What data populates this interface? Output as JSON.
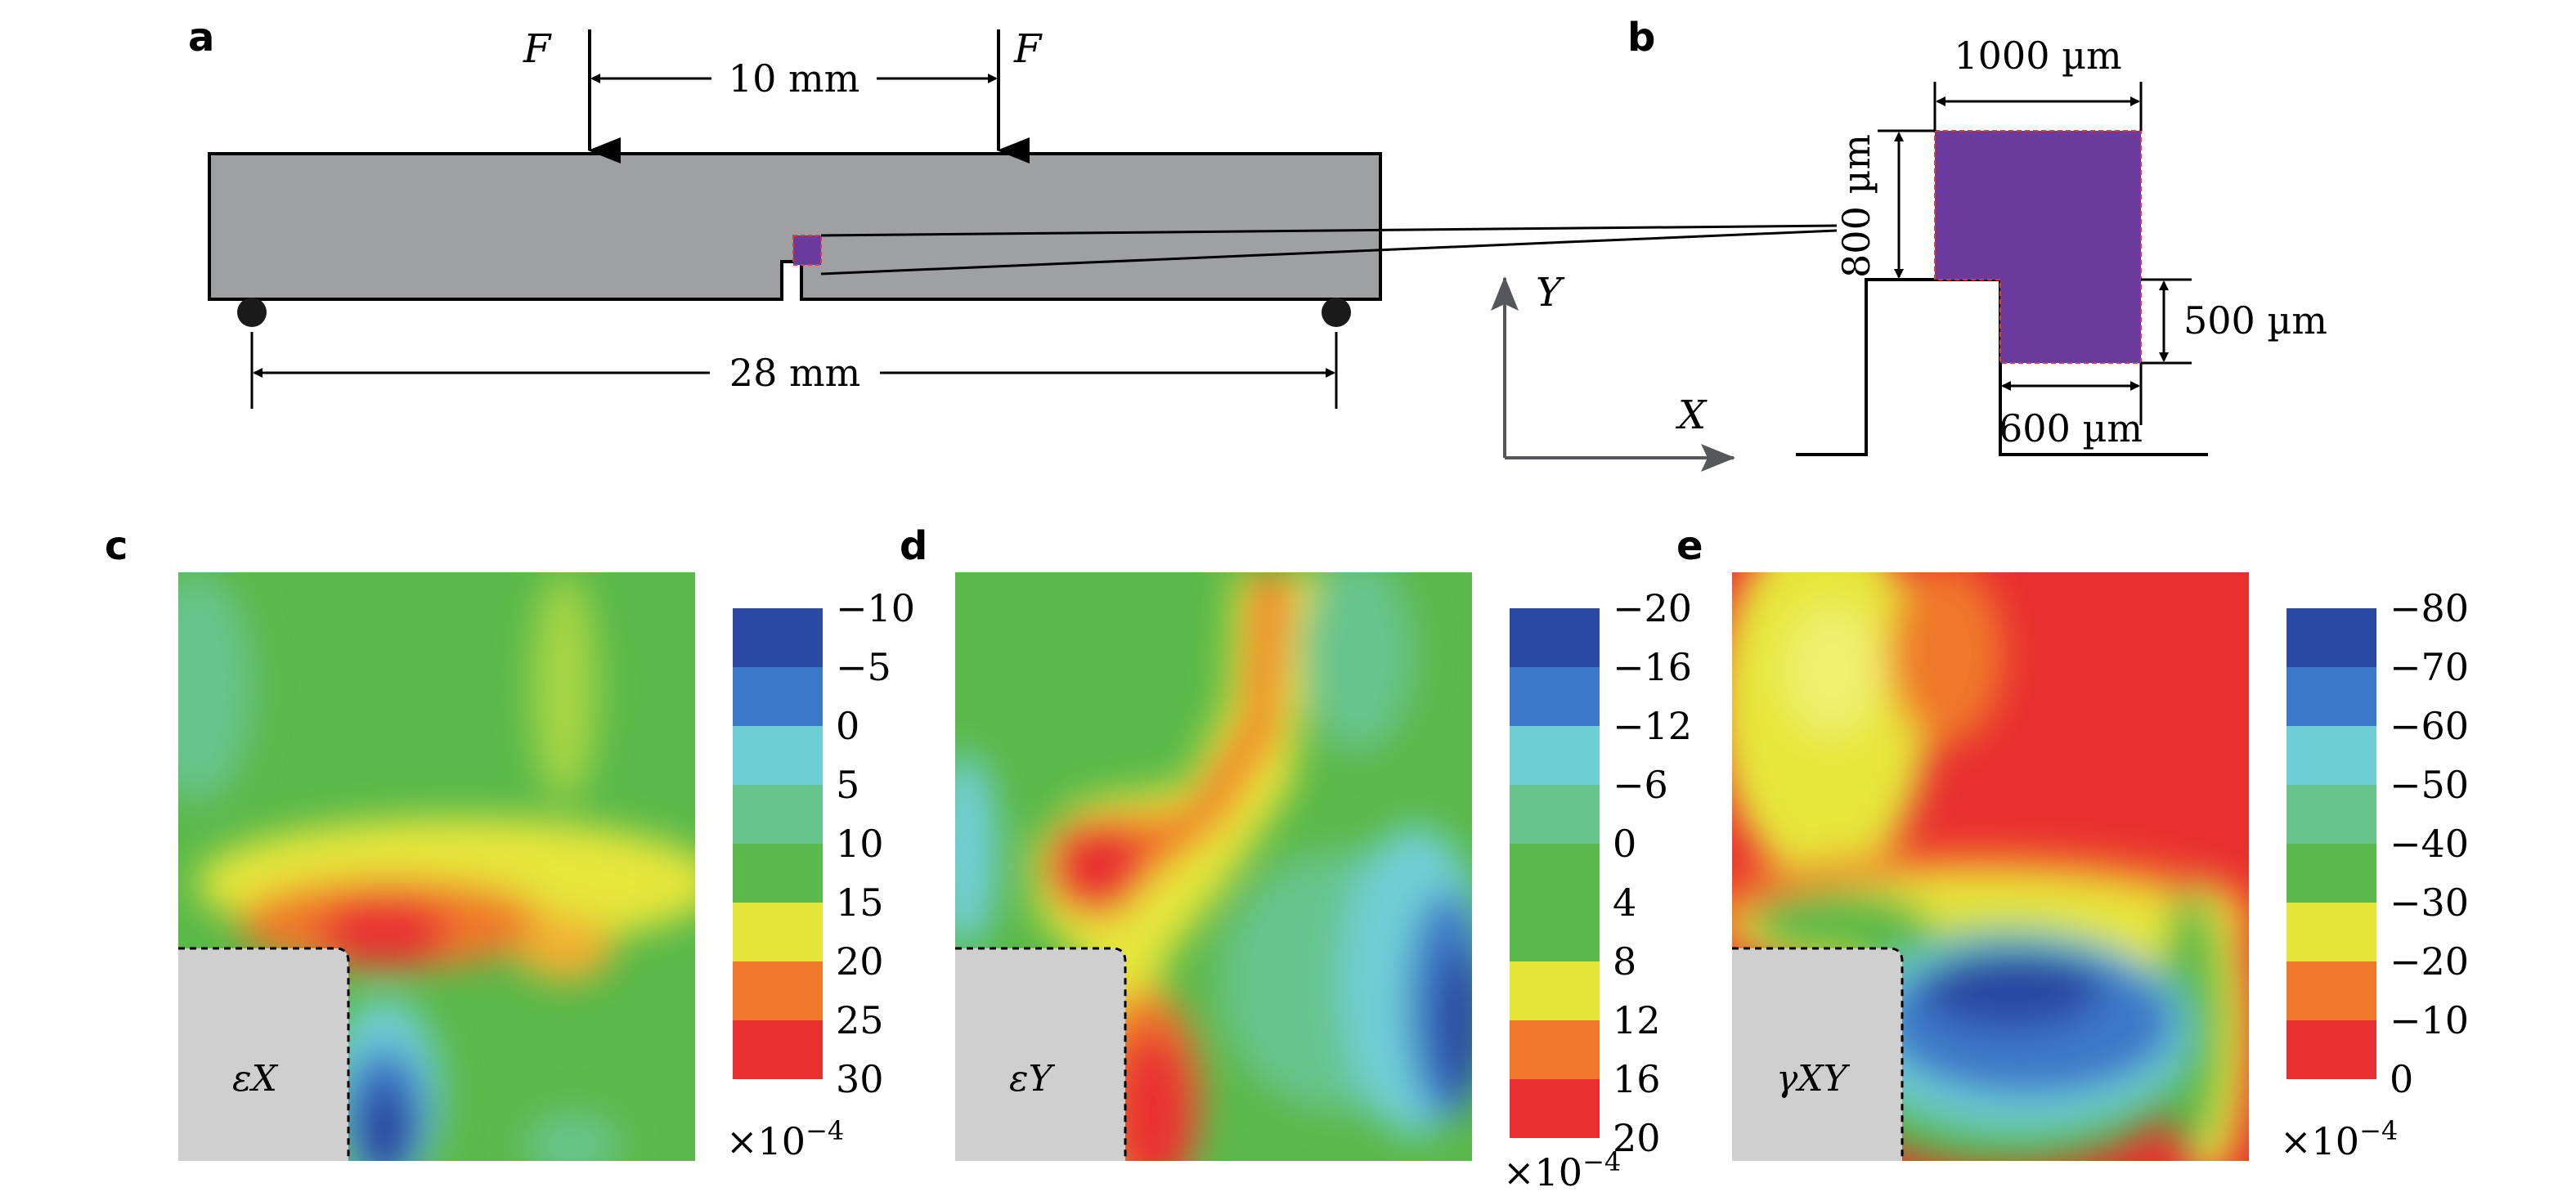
{
  "panel_labels": {
    "a": "a",
    "b": "b",
    "c": "c",
    "d": "d",
    "e": "e"
  },
  "panel_a": {
    "force_left": "F",
    "force_right": "F",
    "load_span": "10 mm",
    "support_span": "28 mm"
  },
  "panel_b": {
    "width_label": "1000 µm",
    "height_label": "800 µm",
    "notch_height_label": "500 µm",
    "notch_width_label": "600 µm",
    "axis_x": "X",
    "axis_y": "Y"
  },
  "panel_c": {
    "map_label": "εX",
    "ticks": [
      "−10",
      "−5",
      "0",
      "5",
      "10",
      "15",
      "20",
      "25",
      "30"
    ],
    "scale_base": "×10",
    "scale_exp": "−4"
  },
  "panel_d": {
    "map_label": "εY",
    "ticks": [
      "−20",
      "−16",
      "−12",
      "−6",
      "0",
      "4",
      "8",
      "12",
      "16",
      "20"
    ],
    "scale_base": "×10",
    "scale_exp": "−4"
  },
  "panel_e": {
    "map_label": "γXY",
    "ticks": [
      "−80",
      "−70",
      "−60",
      "−50",
      "−40",
      "−30",
      "−20",
      "−10",
      "0"
    ],
    "scale_base": "×10",
    "scale_exp": "−4"
  },
  "colors": {
    "beam": "#9fa0a2",
    "roi": "#6a3a9c",
    "notch_grey": "#cfcfcf",
    "bands": [
      "#2b4aa3",
      "#3c78c8",
      "#6fcfd6",
      "#67c48d",
      "#5ab94a",
      "#e6e63a",
      "#f0782a",
      "#e83030"
    ]
  }
}
